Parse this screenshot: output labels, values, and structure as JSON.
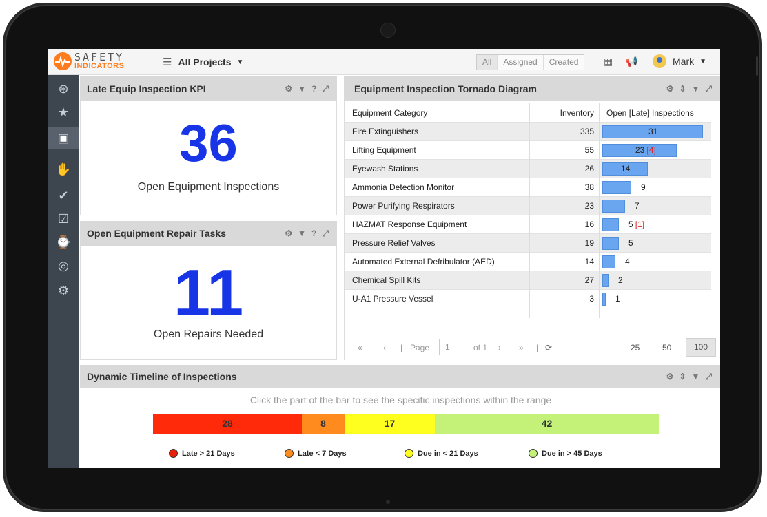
{
  "app": {
    "logo_top": "SAFETY",
    "logo_bottom": "INDICATORS",
    "project_selector": "All Projects"
  },
  "topbar": {
    "segments": [
      "All",
      "Assigned",
      "Created"
    ],
    "user_name": "Mark"
  },
  "sidebar": {
    "icons": [
      "compass-icon",
      "star-icon",
      "presentation-icon",
      "hand-shield-icon",
      "check-circle-icon",
      "clipboard-check-icon",
      "clipboard-clock-icon",
      "circle-check-icon",
      "gears-icon"
    ],
    "active_index": 2
  },
  "kpi_late": {
    "title": "Late Equip Inspection KPI",
    "value": "36",
    "label": "Open Equipment Inspections"
  },
  "kpi_repairs": {
    "title": "Open Equipment Repair Tasks",
    "value": "11",
    "label": "Open Repairs Needed"
  },
  "tornado": {
    "title": "Equipment Inspection Tornado Diagram",
    "headers": [
      "Equipment Category",
      "Inventory",
      "Open [Late] Inspections"
    ],
    "rows": [
      {
        "category": "Fire Extinguishers",
        "inventory": "335",
        "open": 31,
        "late": ""
      },
      {
        "category": "Lifting Equipment",
        "inventory": "55",
        "open": 23,
        "late": "[4]"
      },
      {
        "category": "Eyewash Stations",
        "inventory": "26",
        "open": 14,
        "late": ""
      },
      {
        "category": "Ammonia Detection Monitor",
        "inventory": "38",
        "open": 9,
        "late": ""
      },
      {
        "category": "Power Purifying Respirators",
        "inventory": "23",
        "open": 7,
        "late": ""
      },
      {
        "category": "HAZMAT Response Equipment",
        "inventory": "16",
        "open": 5,
        "late": "[1]"
      },
      {
        "category": "Pressure Relief Valves",
        "inventory": "19",
        "open": 5,
        "late": ""
      },
      {
        "category": "Automated External Defribulator (AED)",
        "inventory": "14",
        "open": 4,
        "late": ""
      },
      {
        "category": "Chemical Spill Kits",
        "inventory": "27",
        "open": 2,
        "late": ""
      },
      {
        "category": "U-A1 Pressure Vessel",
        "inventory": "3",
        "open": 1,
        "late": ""
      }
    ],
    "pager": {
      "page_label": "Page",
      "page_value": "1",
      "of_label": "of 1",
      "sizes": [
        "25",
        "50",
        "100"
      ],
      "active_size": "100"
    }
  },
  "timeline": {
    "title": "Dynamic Timeline of Inspections",
    "hint": "Click the part of the bar to see the specific inspections within the range",
    "segments": [
      {
        "value": "28",
        "count": 28,
        "color": "#ff2a0a"
      },
      {
        "value": "8",
        "count": 8,
        "color": "#ff8b1f"
      },
      {
        "value": "17",
        "count": 17,
        "color": "#ffff1f"
      },
      {
        "value": "42",
        "count": 42,
        "color": "#c4f279"
      }
    ],
    "legend": [
      {
        "label": "Late > 21 Days",
        "color": "#e8200a"
      },
      {
        "label": "Late < 7 Days",
        "color": "#ff8b1f"
      },
      {
        "label": "Due in < 21 Days",
        "color": "#ffff1f"
      },
      {
        "label": "Due in > 45 Days",
        "color": "#c4f279"
      }
    ]
  }
}
